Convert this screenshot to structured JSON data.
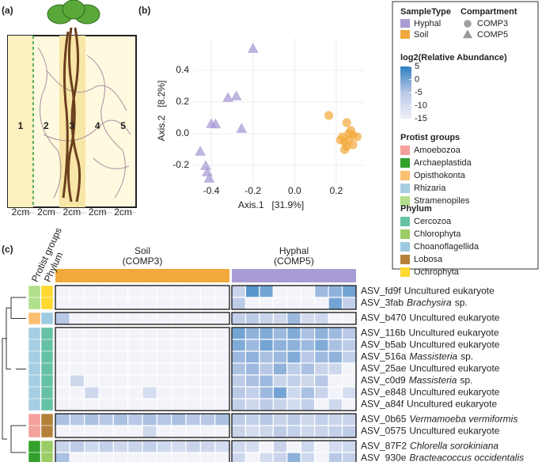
{
  "panels": [
    "(a)",
    "(b)",
    "(c)"
  ],
  "diagram": {
    "zones": [
      "1",
      "2",
      "3",
      "4",
      "5"
    ],
    "widths": [
      "2cm",
      "2cm",
      "2cm",
      "2cm",
      "2cm"
    ]
  },
  "chart_data": [
    {
      "type": "scatter",
      "xlabel": "Axis.1   [31.9%]",
      "ylabel": "Axis.2   [8.2%]",
      "xlim": [
        -0.484,
        0.333
      ],
      "ylim": [
        -0.315,
        0.605
      ],
      "xticks": [
        -0.4,
        -0.2,
        {
          "value": 0,
          "label": "0.0"
        },
        0.2
      ],
      "yticks": [
        -0.2,
        {
          "value": 0,
          "label": "0.0"
        },
        0.2,
        0.4
      ],
      "grid": true,
      "legend_title": "SampleType",
      "shape_legend_title": "Compartment",
      "shapes": [
        {
          "name": "COMP3",
          "marker": "circle"
        },
        {
          "name": "COMP5",
          "marker": "triangle"
        }
      ],
      "series": [
        {
          "name": "Hyphal",
          "color": "#a99bd4",
          "shape": "COMP5",
          "x": [
            -0.2,
            -0.32,
            -0.28,
            -0.4,
            -0.38,
            -0.255,
            -0.453,
            -0.427,
            -0.42,
            -0.41
          ],
          "y": [
            0.535,
            0.225,
            0.235,
            0.06,
            0.058,
            0.03,
            -0.115,
            -0.205,
            -0.245,
            -0.285
          ]
        },
        {
          "name": "Soil",
          "color": "#f2a93b",
          "shape": "COMP3",
          "x": [
            0.164,
            0.25,
            0.23,
            0.24,
            0.26,
            0.28,
            0.27,
            0.25,
            0.3,
            0.24,
            0.26,
            0.28,
            0.22
          ],
          "y": [
            0.115,
            0.07,
            -0.02,
            -0.05,
            -0.04,
            -0.01,
            0.02,
            -0.08,
            -0.02,
            -0.1,
            0.0,
            -0.07,
            -0.04
          ]
        }
      ]
    },
    {
      "type": "heatmap",
      "strip_titles": [
        "Protist groups",
        "Phylum"
      ],
      "colorbar_title": "log2(Relative Abundance)",
      "clim": [
        -15,
        5
      ],
      "colorbar_ticks": [
        5,
        0,
        -5,
        -10,
        -15
      ],
      "colorscale": [
        "#f0f0f8",
        "#b8c8e6",
        "#2f7fc1"
      ],
      "groups": [
        {
          "name": "Soil",
          "subtitle": "(COMP3)",
          "color": "#f2a93b"
        },
        {
          "name": "Hyphal",
          "subtitle": "(COMP5)",
          "color": "#a99bd4"
        }
      ],
      "protist_title": "Protist groups",
      "protist_groups": [
        {
          "name": "Amoebozoa",
          "color": "#f4a09c"
        },
        {
          "name": "Archaeplastida",
          "color": "#33a02c"
        },
        {
          "name": "Opisthokonta",
          "color": "#fdbf6f"
        },
        {
          "name": "Rhizaria",
          "color": "#a6cee3"
        },
        {
          "name": "Stramenopiles",
          "color": "#b2df8a"
        }
      ],
      "phylum_title": "Phylum",
      "phyla": [
        {
          "name": "Cercozoa",
          "color": "#66c2a5"
        },
        {
          "name": "Chlorophyta",
          "color": "#9ccc65"
        },
        {
          "name": "Choanoflagellida",
          "color": "#9ecae1"
        },
        {
          "name": "Lobosa",
          "color": "#b5813a"
        },
        {
          "name": "Ochrophyta",
          "color": "#ffd92f"
        }
      ],
      "rows": [
        {
          "asv": "ASV_fd9f",
          "taxon": "Uncultured eukaryote",
          "protist": "Stramenopiles",
          "phylum": "Ochrophyta",
          "values": [
            [
              null,
              null,
              null,
              null,
              null,
              null,
              null,
              null,
              null,
              null,
              null,
              null
            ],
            [
              -8,
              2,
              0,
              null,
              null,
              null,
              -3,
              -2,
              0
            ]
          ]
        },
        {
          "asv": "ASV_3fab",
          "taxon": "Brachysira",
          "italic": true,
          "suffix": "sp.",
          "protist": "Stramenopiles",
          "phylum": "Ochrophyta",
          "values": [
            [
              null,
              null,
              null,
              null,
              null,
              null,
              null,
              null,
              null,
              null,
              null,
              null
            ],
            [
              -6,
              null,
              null,
              null,
              null,
              null,
              null,
              0,
              -7
            ]
          ]
        },
        {
          "asv": "ASV_b470",
          "taxon": "Uncultured eukaryote",
          "protist": "Opisthokonta",
          "phylum": "Choanoflagellida",
          "values": [
            [
              -5,
              null,
              null,
              null,
              null,
              null,
              null,
              null,
              null,
              null,
              null,
              null
            ],
            [
              -7,
              -6,
              -8,
              -9,
              -3,
              -10,
              -9,
              null,
              null
            ]
          ]
        },
        {
          "asv": "ASV_116b",
          "taxon": "Uncultured eukaryote",
          "protist": "Rhizaria",
          "phylum": "Cercozoa",
          "values": [
            [
              null,
              null,
              null,
              null,
              null,
              null,
              null,
              null,
              null,
              null,
              null,
              null
            ],
            [
              0,
              -2,
              -1,
              -3,
              -1,
              -4,
              -2,
              -3,
              -5
            ]
          ]
        },
        {
          "asv": "ASV_b5ab",
          "taxon": "Uncultured eukaryote",
          "protist": "Rhizaria",
          "phylum": "Cercozoa",
          "values": [
            [
              null,
              null,
              null,
              null,
              null,
              null,
              null,
              null,
              null,
              null,
              null,
              null
            ],
            [
              -1,
              -3,
              0,
              -2,
              -2,
              -3,
              -1,
              -4,
              -6
            ]
          ]
        },
        {
          "asv": "ASV_516a",
          "taxon": "Massisteria",
          "italic": true,
          "suffix": "sp.",
          "protist": "Rhizaria",
          "phylum": "Cercozoa",
          "values": [
            [
              null,
              null,
              null,
              null,
              null,
              null,
              null,
              null,
              null,
              null,
              null,
              null
            ],
            [
              -3,
              -2,
              -4,
              -3,
              -1,
              -5,
              -3,
              -2,
              -7
            ]
          ]
        },
        {
          "asv": "ASV_25ae",
          "taxon": "Uncultured eukaryote",
          "protist": "Rhizaria",
          "phylum": "Cercozoa",
          "values": [
            [
              null,
              null,
              null,
              null,
              null,
              null,
              null,
              null,
              null,
              null,
              null,
              null
            ],
            [
              -4,
              -3,
              -5,
              -2,
              -6,
              -4,
              -8,
              -9,
              null
            ]
          ]
        },
        {
          "asv": "ASV_c0d9",
          "taxon": "Massisteria",
          "italic": true,
          "suffix": "sp.",
          "protist": "Rhizaria",
          "phylum": "Cercozoa",
          "values": [
            [
              null,
              -9,
              null,
              null,
              null,
              null,
              null,
              null,
              null,
              null,
              null,
              null
            ],
            [
              -6,
              -4,
              -3,
              -8,
              -7,
              -9,
              -5,
              null,
              null
            ]
          ]
        },
        {
          "asv": "ASV_e848",
          "taxon": "Uncultured eukaryote",
          "protist": "Rhizaria",
          "phylum": "Cercozoa",
          "values": [
            [
              null,
              null,
              -9,
              null,
              null,
              null,
              -10,
              null,
              null,
              null,
              null,
              null
            ],
            [
              -5,
              -7,
              -3,
              0,
              -9,
              -4,
              -8,
              null,
              -10
            ]
          ]
        },
        {
          "asv": "ASV_a84f",
          "taxon": "Uncultured eukaryote",
          "protist": "Rhizaria",
          "phylum": "Cercozoa",
          "values": [
            [
              null,
              null,
              null,
              null,
              null,
              null,
              null,
              null,
              null,
              null,
              null,
              null
            ],
            [
              -7,
              -9,
              -6,
              -8,
              -10,
              -7,
              null,
              -9,
              null
            ]
          ]
        },
        {
          "asv": "ASV_0b65",
          "taxon": "Vermamoeba vermiformis",
          "italic": true,
          "protist": "Amoebozoa",
          "phylum": "Lobosa",
          "values": [
            [
              -4,
              -5,
              -4,
              -5,
              -4,
              -5,
              -4,
              -5,
              -4,
              -5,
              -5,
              -4
            ],
            [
              -6,
              -7,
              -5,
              -8,
              -6,
              -9,
              -7,
              -8,
              -8
            ]
          ]
        },
        {
          "asv": "ASV_0575",
          "taxon": "Uncultured eukaryote",
          "protist": "Amoebozoa",
          "phylum": "Lobosa",
          "values": [
            [
              null,
              null,
              null,
              null,
              null,
              null,
              -9,
              null,
              null,
              null,
              null,
              null
            ],
            [
              -8,
              -10,
              -9,
              -6,
              -7,
              -9,
              -8,
              -7,
              -6
            ]
          ]
        },
        {
          "asv": "ASV_87F2",
          "taxon": "Chlorella sorokiniana",
          "italic": true,
          "protist": "Archaeplastida",
          "phylum": "Chlorophyta",
          "values": [
            [
              -8,
              -6,
              -9,
              -7,
              -9,
              -8,
              -7,
              -9,
              -10,
              -8,
              -9,
              -10
            ],
            [
              -9,
              -10,
              null,
              -8,
              null,
              -9,
              null,
              -10,
              -9
            ]
          ]
        },
        {
          "asv": "ASV_930e",
          "taxon": "Bracteacoccus occidentalis",
          "italic": true,
          "protist": "Archaeplastida",
          "phylum": "Chlorophyta",
          "values": [
            [
              -4,
              null,
              null,
              null,
              null,
              null,
              null,
              null,
              null,
              null,
              null,
              null
            ],
            [
              -9,
              null,
              -10,
              -8,
              -2,
              -9,
              null,
              -5,
              -7
            ]
          ]
        }
      ]
    }
  ]
}
